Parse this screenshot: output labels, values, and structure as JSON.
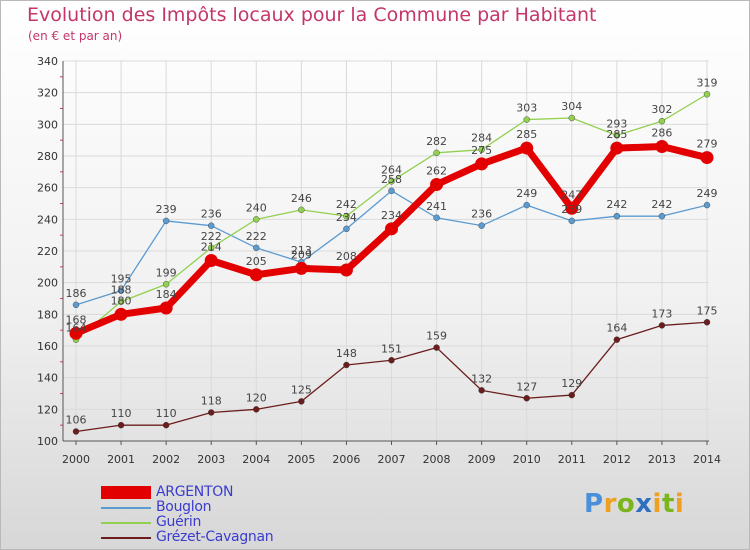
{
  "title": "Evolution des Impôts locaux pour la Commune par Habitant",
  "subtitle": "(en € et par an)",
  "brand": {
    "letters": [
      "P",
      "r",
      "o",
      "x",
      "i",
      "t",
      "i"
    ],
    "colors": [
      "#4a8fd9",
      "#f0a020",
      "#7ab51d",
      "#2f6fc0",
      "#f0a020",
      "#7ab51d",
      "#f0a020"
    ]
  },
  "colors": {
    "argenton": "#e30000",
    "bouglon": "#5b9bd0",
    "guerin": "#92d050",
    "grezet": "#6b1d1d",
    "grid": "#dadada",
    "axis": "#555555",
    "legend_text": "#3b3bd0",
    "title": "#c4366a"
  },
  "chart_data": {
    "type": "line",
    "title": "Evolution des Impôts locaux pour la Commune par Habitant",
    "subtitle": "(en € et par an)",
    "xlabel": "",
    "ylabel": "",
    "ylim": [
      100,
      340
    ],
    "ytick_step": 20,
    "grid": true,
    "legend_position": "bottom-left",
    "categories": [
      "2000",
      "2001",
      "2002",
      "2003",
      "2004",
      "2005",
      "2006",
      "2007",
      "2008",
      "2009",
      "2010",
      "2011",
      "2012",
      "2013",
      "2014"
    ],
    "series": [
      {
        "key": "grezet",
        "name": "Grézet-Cavagnan",
        "values": [
          106,
          110,
          110,
          118,
          120,
          125,
          148,
          151,
          159,
          132,
          127,
          129,
          164,
          173,
          175
        ]
      },
      {
        "key": "bouglon",
        "name": "Bouglon",
        "values": [
          186,
          195,
          239,
          236,
          222,
          213,
          234,
          258,
          241,
          236,
          249,
          239,
          242,
          242,
          249
        ]
      },
      {
        "key": "guerin",
        "name": "Guérin",
        "values": [
          164,
          188,
          199,
          222,
          240,
          246,
          242,
          264,
          282,
          284,
          303,
          304,
          293,
          302,
          319
        ]
      },
      {
        "key": "argenton",
        "name": "ARGENTON",
        "values": [
          168,
          180,
          184,
          214,
          205,
          209,
          208,
          234,
          262,
          275,
          285,
          247,
          285,
          286,
          279
        ]
      }
    ],
    "data_labels": {
      "grezet": [
        "106",
        "110",
        "110",
        "118",
        "120",
        "125",
        "148",
        "151",
        "159",
        "132",
        "127",
        "129",
        "164",
        "173",
        "175"
      ],
      "bouglon": [
        "186",
        "195",
        "239",
        "236",
        "222",
        "213",
        "234",
        "258",
        "241",
        "236",
        "249",
        "239",
        "242",
        "242",
        "249"
      ],
      "guerin": [
        "164",
        "188",
        "199",
        "222",
        "240",
        "246",
        "242",
        "264",
        "282",
        "284",
        "303",
        "304",
        "293",
        "302",
        "319"
      ],
      "argenton": [
        "168",
        "180",
        "184",
        "214",
        "205",
        "209",
        "208",
        "234",
        "262",
        "275",
        "285",
        "247",
        "285",
        "286",
        "279"
      ]
    },
    "legend": [
      {
        "key": "argenton",
        "label": "ARGENTON"
      },
      {
        "key": "bouglon",
        "label": "Bouglon"
      },
      {
        "key": "guerin",
        "label": "Guérin"
      },
      {
        "key": "grezet",
        "label": "Grézet-Cavagnan"
      }
    ]
  }
}
